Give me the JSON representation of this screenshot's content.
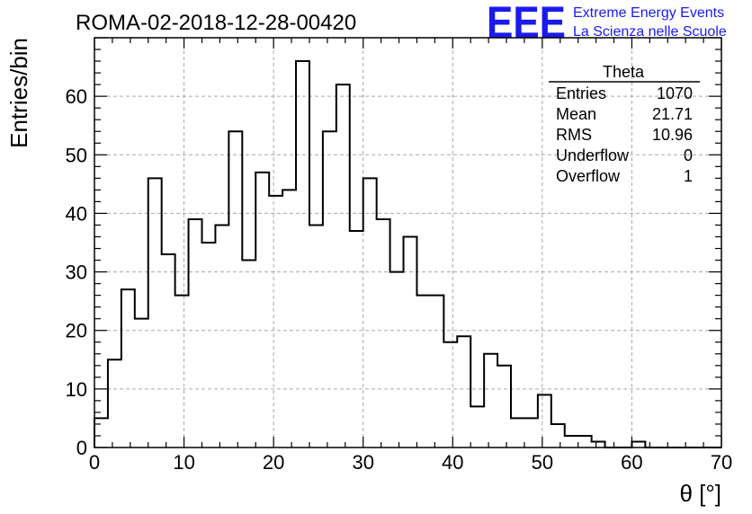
{
  "chart_data": {
    "type": "bar",
    "title": "ROMA-02-2018-12-28-00420",
    "xlabel": "θ [°]",
    "ylabel": "Entries/bin",
    "xlim": [
      0,
      70
    ],
    "ylim": [
      0,
      70
    ],
    "x_ticks": [
      0,
      10,
      20,
      30,
      40,
      50,
      60,
      70
    ],
    "y_ticks": [
      0,
      10,
      20,
      30,
      40,
      50,
      60
    ],
    "grid": true,
    "bin_width": 1.5,
    "bin_start": 0,
    "values": [
      5,
      15,
      27,
      22,
      46,
      33,
      26,
      39,
      35,
      38,
      54,
      32,
      47,
      43,
      44,
      66,
      38,
      54,
      62,
      37,
      46,
      39,
      30,
      36,
      26,
      26,
      18,
      19,
      7,
      16,
      14,
      5,
      5,
      9,
      4,
      2,
      2,
      1,
      0,
      0,
      1,
      0,
      0,
      0,
      0,
      0,
      0
    ],
    "stats": {
      "name": "Theta",
      "rows": [
        {
          "label": "Entries",
          "value": "1070"
        },
        {
          "label": "Mean",
          "value": "21.71"
        },
        {
          "label": "RMS",
          "value": "10.96"
        },
        {
          "label": "Underflow",
          "value": "0"
        },
        {
          "label": "Overflow",
          "value": "1"
        }
      ]
    }
  },
  "logo": {
    "letters": "EEE",
    "line1": "Extreme Energy Events",
    "line2": "La Scienza nelle Scuole",
    "color": "#1a1aee"
  }
}
